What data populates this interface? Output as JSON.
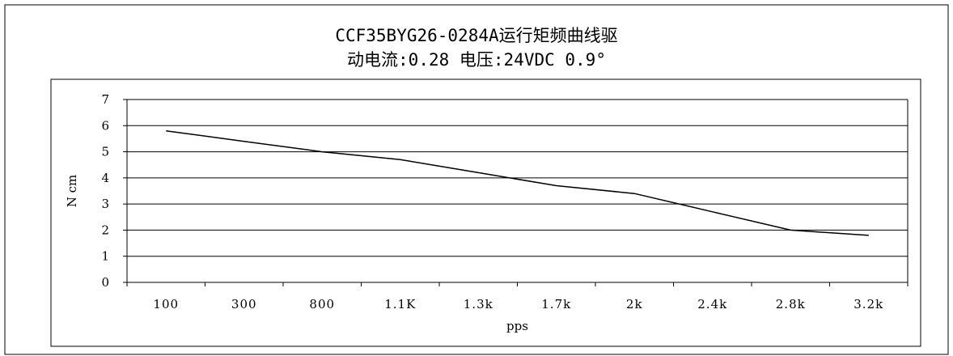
{
  "chart_data": {
    "type": "line",
    "title": "CCF35BYG26-0284A运行矩频曲线驱",
    "subtitle": "动电流:0.28  电压:24VDC 0.9°",
    "xlabel": "pps",
    "ylabel": "N cm",
    "categories": [
      "100",
      "300",
      "800",
      "1.1K",
      "1.3k",
      "1.7k",
      "2k",
      "2.4k",
      "2.8k",
      "3.2k"
    ],
    "y_ticks": [
      "0",
      "1",
      "2",
      "3",
      "4",
      "5",
      "6",
      "7"
    ],
    "ylim": [
      0,
      7
    ],
    "grid": true,
    "legend": "none",
    "series": [
      {
        "values": [
          5.8,
          5.4,
          5.0,
          4.7,
          4.2,
          3.7,
          3.4,
          2.7,
          2.0,
          1.8
        ]
      }
    ]
  }
}
